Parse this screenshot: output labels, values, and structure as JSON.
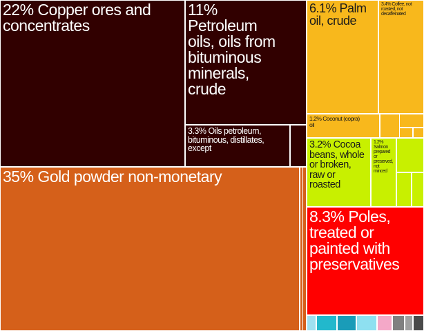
{
  "chart_data": {
    "type": "treemap",
    "title": "",
    "items": [
      {
        "label": "22% Copper ores and\nconcentrates",
        "value": 22,
        "color": "#310000"
      },
      {
        "label": "11%\nPetroleum\noils, oils from\nbituminous\nminerals,\ncrude",
        "value": 11,
        "color": "#310000"
      },
      {
        "label": "3.3% Oils petroleum,\nbituminous, distillates,\nexcept",
        "value": 3.3,
        "color": "#310000"
      },
      {
        "label": "35% Gold powder non-monetary",
        "value": 35,
        "color": "#d5601a"
      },
      {
        "label": "6.1% Palm\noil, crude",
        "value": 6.1,
        "color": "#f8b81c"
      },
      {
        "label": "3.4% Coffee, not\nroasted, not\ndecaffeinated",
        "value": 3.4,
        "color": "#f8b81c"
      },
      {
        "label": "1.2% Coconut (copra)\noil",
        "value": 1.2,
        "color": "#f8b81c"
      },
      {
        "label": "3.2% Cocoa\nbeans, whole\nor broken,\nraw or\nroasted",
        "value": 3.2,
        "color": "#c8f000"
      },
      {
        "label": "1.2%\nSalmon\nprepared\nor\npreserved,\nnot\nminced",
        "value": 1.2,
        "color": "#c8f000"
      },
      {
        "label": "8.3% Poles,\ntreated or\npainted with\npreservatives",
        "value": 8.3,
        "color": "#ff0000"
      }
    ]
  }
}
